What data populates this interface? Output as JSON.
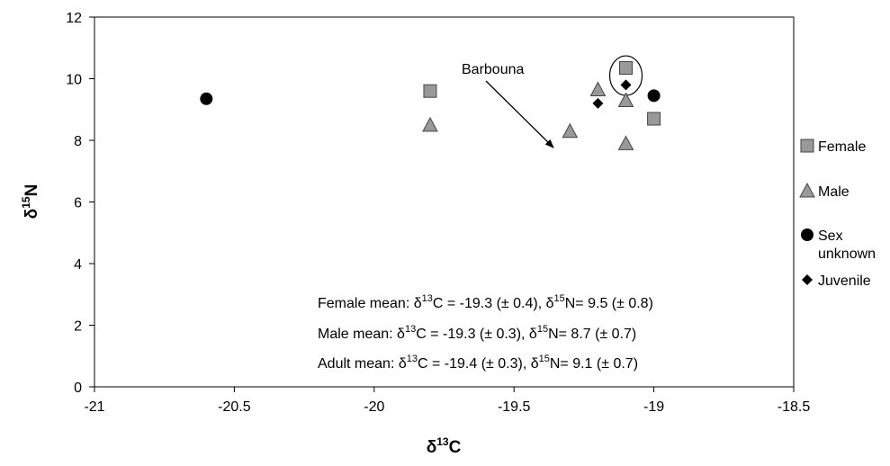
{
  "chart_data": {
    "type": "scatter",
    "title": "",
    "xlabel": {
      "symbol": "δ",
      "sup": "13",
      "element": "C"
    },
    "ylabel": {
      "symbol": "δ",
      "sup": "15",
      "element": "N"
    },
    "xlim": [
      -21,
      -18.5
    ],
    "ylim": [
      0,
      12
    ],
    "xticks": [
      -21,
      -20.5,
      -20,
      -19.5,
      -19,
      -18.5
    ],
    "xtick_labels": [
      "-21",
      "-20.5",
      "-20",
      "-19.5",
      "-19",
      "-18.5"
    ],
    "yticks": [
      0,
      2,
      4,
      6,
      8,
      10,
      12
    ],
    "ytick_labels": [
      "0",
      "2",
      "4",
      "6",
      "8",
      "10",
      "12"
    ],
    "grid": false,
    "legend_position": "right",
    "series": [
      {
        "name": "Female",
        "marker": "square",
        "color": "#999999",
        "points": [
          [
            -19.8,
            9.6
          ],
          [
            -19.1,
            10.35
          ],
          [
            -19.0,
            8.7
          ]
        ]
      },
      {
        "name": "Male",
        "marker": "triangle",
        "color": "#999999",
        "points": [
          [
            -19.8,
            8.5
          ],
          [
            -19.3,
            8.3
          ],
          [
            -19.2,
            9.65
          ],
          [
            -19.1,
            9.3
          ],
          [
            -19.1,
            7.9
          ]
        ]
      },
      {
        "name": "Sex unknown",
        "legend_lines": [
          "Sex",
          "unknown"
        ],
        "marker": "circle",
        "color": "#000000",
        "points": [
          [
            -20.6,
            9.35
          ],
          [
            -19.0,
            9.45
          ]
        ]
      },
      {
        "name": "Juvenile",
        "marker": "diamond",
        "color": "#000000",
        "points": [
          [
            -19.2,
            9.2
          ],
          [
            -19.1,
            9.8
          ]
        ]
      }
    ],
    "annotations": {
      "label": "Barbouna",
      "circled_point": [
        -19.1,
        10.1
      ]
    },
    "stats": [
      {
        "prefix": "Female mean: ",
        "c_value": " = -19.3 (± 0.4), ",
        "n_value": "= 9.5 (± 0.8)"
      },
      {
        "prefix": "Male mean: ",
        "c_value": " = -19.3 (± 0.3), ",
        "n_value": "= 8.7 (± 0.7)"
      },
      {
        "prefix": "Adult mean: ",
        "c_value": " = -19.4 (± 0.3), ",
        "n_value": "= 9.1 (± 0.7)"
      }
    ],
    "stat_symbols": {
      "delta": "δ",
      "c_sup": "13",
      "c_el": "C",
      "n_sup": "15",
      "n_el": "N"
    }
  }
}
